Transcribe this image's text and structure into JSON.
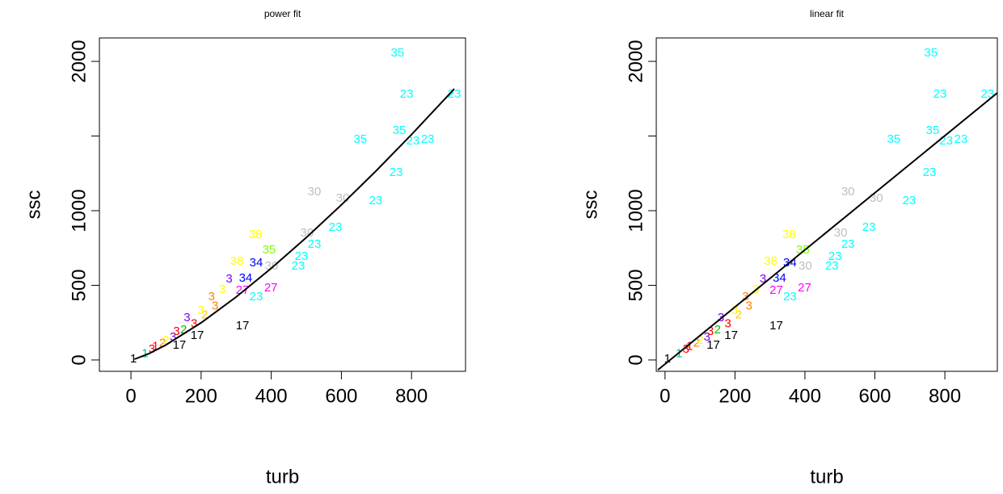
{
  "chart_data": [
    {
      "type": "scatter",
      "title": "power fit",
      "xlabel": "turb",
      "ylabel": "ssc",
      "xlim": [
        -90,
        954
      ],
      "ylim": [
        -76,
        2157
      ],
      "xticks": [
        0,
        200,
        400,
        600,
        800
      ],
      "yticks": [
        0,
        500,
        1000,
        {
          "value": 1500,
          "label": null
        },
        2000
      ],
      "points": {
        "x": [
          760,
          786,
          922,
          765,
          804,
          846,
          654,
          756,
          698,
          523,
          604,
          502,
          583,
          523,
          486,
          477,
          355,
          394,
          401,
          357,
          327,
          302,
          399,
          357,
          318,
          189,
          138,
          318,
          7,
          60,
          90,
          120,
          150,
          180,
          210,
          240,
          40,
          70,
          100,
          130,
          160,
          200,
          230,
          260,
          280
        ],
        "y": [
          2054,
          1778,
          1778,
          1535,
          1465,
          1476,
          1476,
          1254,
          1065,
          1124,
          1081,
          849,
          886,
          773,
          692,
          627,
          838,
          735,
          627,
          649,
          546,
          659,
          481,
          422,
          227,
          162,
          97,
          465,
          5,
          70,
          110,
          150,
          200,
          240,
          300,
          360,
          40,
          90,
          130,
          190,
          280,
          330,
          420,
          470,
          540
        ],
        "labels": [
          "35",
          "23",
          "23",
          "35",
          "23",
          "23",
          "35",
          "23",
          "23",
          "30",
          "30",
          "30",
          "23",
          "23",
          "23",
          "23",
          "38",
          "35",
          "30",
          "34",
          "34",
          "38",
          "27",
          "23",
          "17",
          "17",
          "17",
          "27",
          "1",
          "3",
          "2",
          "3",
          "2",
          "3",
          "2",
          "3",
          "1",
          "1",
          "2",
          "3",
          "3",
          "3",
          "3",
          "3",
          "3"
        ],
        "colors": [
          "#00ffff",
          "#00ffff",
          "#00ffff",
          "#00ffff",
          "#00ffff",
          "#00ffff",
          "#00ffff",
          "#00ffff",
          "#00ffff",
          "#bebebe",
          "#bebebe",
          "#bebebe",
          "#00ffff",
          "#00ffff",
          "#00ffff",
          "#00ffff",
          "#ffff00",
          "#80ff00",
          "#bebebe",
          "#0000ff",
          "#0000ff",
          "#ffff00",
          "#ff00ff",
          "#00ffff",
          "#000000",
          "#000000",
          "#000000",
          "#ff00ff",
          "#000000",
          "#ff0000",
          "#ff8000",
          "#8000ff",
          "#00c000",
          "#ff0000",
          "#ffcc00",
          "#ff8000",
          "#00c080",
          "#ff0000",
          "#ffff00",
          "#ff0000",
          "#8000ff",
          "#ffff00",
          "#ff8000",
          "#ffff00",
          "#8000ff"
        ]
      },
      "fit": {
        "x": [
          10,
          50,
          100,
          200,
          300,
          400,
          500,
          600,
          700,
          800,
          922
        ],
        "y": [
          5.1,
          41,
          101,
          249,
          422,
          614,
          820,
          1039,
          1269,
          1510,
          1816
        ],
        "color": "#000000"
      }
    },
    {
      "type": "scatter",
      "title": "linear fit",
      "xlabel": "turb",
      "ylabel": "ssc",
      "xlim": [
        -25,
        950
      ],
      "ylim": [
        -76,
        2157
      ],
      "xticks": [
        0,
        200,
        400,
        600,
        800
      ],
      "yticks": [
        0,
        500,
        1000,
        {
          "value": 1500,
          "label": null
        },
        2000
      ],
      "points": {
        "x": [
          760,
          786,
          922,
          765,
          804,
          846,
          654,
          756,
          698,
          523,
          604,
          502,
          583,
          523,
          486,
          477,
          355,
          394,
          401,
          357,
          327,
          302,
          399,
          357,
          318,
          189,
          138,
          318,
          7,
          60,
          90,
          120,
          150,
          180,
          210,
          240,
          40,
          70,
          100,
          130,
          160,
          200,
          230,
          260,
          280
        ],
        "y": [
          2054,
          1778,
          1778,
          1535,
          1465,
          1476,
          1476,
          1254,
          1065,
          1124,
          1081,
          849,
          886,
          773,
          692,
          627,
          838,
          735,
          627,
          649,
          546,
          659,
          481,
          422,
          227,
          162,
          97,
          465,
          5,
          70,
          110,
          150,
          200,
          240,
          300,
          360,
          40,
          90,
          130,
          190,
          280,
          330,
          420,
          470,
          540
        ],
        "labels": [
          "35",
          "23",
          "23",
          "35",
          "23",
          "23",
          "35",
          "23",
          "23",
          "30",
          "30",
          "30",
          "23",
          "23",
          "23",
          "23",
          "38",
          "35",
          "30",
          "34",
          "34",
          "38",
          "27",
          "23",
          "17",
          "17",
          "17",
          "27",
          "1",
          "3",
          "2",
          "3",
          "2",
          "3",
          "2",
          "3",
          "1",
          "1",
          "2",
          "3",
          "3",
          "3",
          "3",
          "3",
          "3"
        ],
        "colors": [
          "#00ffff",
          "#00ffff",
          "#00ffff",
          "#00ffff",
          "#00ffff",
          "#00ffff",
          "#00ffff",
          "#00ffff",
          "#00ffff",
          "#bebebe",
          "#bebebe",
          "#bebebe",
          "#00ffff",
          "#00ffff",
          "#00ffff",
          "#00ffff",
          "#ffff00",
          "#80ff00",
          "#bebebe",
          "#0000ff",
          "#0000ff",
          "#ffff00",
          "#ff00ff",
          "#00ffff",
          "#000000",
          "#000000",
          "#000000",
          "#ff00ff",
          "#000000",
          "#ff0000",
          "#ff8000",
          "#8000ff",
          "#00c000",
          "#ff0000",
          "#ffcc00",
          "#ff8000",
          "#00c080",
          "#ff0000",
          "#ffff00",
          "#ff0000",
          "#8000ff",
          "#ffff00",
          "#ff8000",
          "#ffff00",
          "#8000ff"
        ]
      },
      "fit": {
        "x": [
          -20,
          950
        ],
        "y": [
          -66,
          1789
        ],
        "color": "#000000"
      }
    }
  ]
}
